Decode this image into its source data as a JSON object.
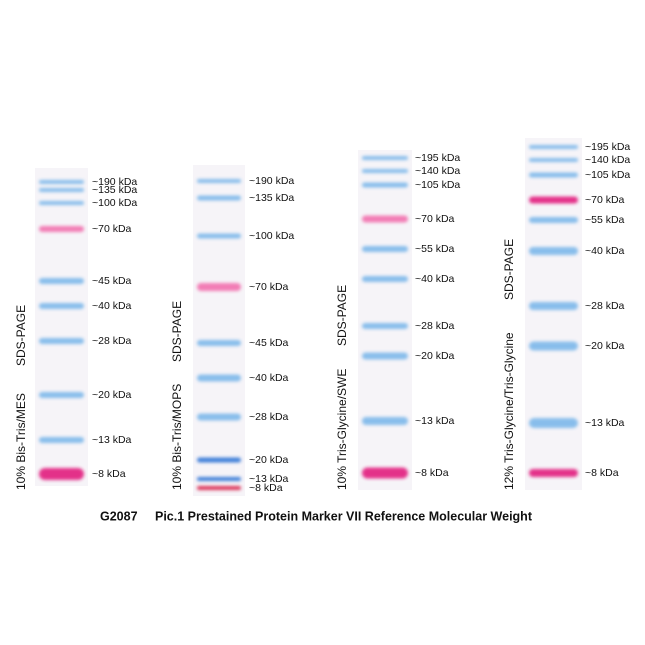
{
  "lanes": [
    {
      "gel_label": "10% Bis-Tris/MES",
      "method": "SDS-PAGE",
      "bands": [
        "~190 kDa",
        "~135 kDa",
        "~100 kDa",
        "~70 kDa",
        "~45 kDa",
        "~40 kDa",
        "~28 kDa",
        "~20 kDa",
        "~13 kDa",
        "~8 kDa"
      ]
    },
    {
      "gel_label": "10% Bis-Tris/MOPS",
      "method": "SDS-PAGE",
      "bands": [
        "~190 kDa",
        "~135 kDa",
        "~100 kDa",
        "~70 kDa",
        "~45 kDa",
        "~40 kDa",
        "~28 kDa",
        "~20 kDa",
        "~13 kDa",
        "~8 kDa"
      ]
    },
    {
      "gel_label": "10% Tris-Glycine/SWE",
      "method": "SDS-PAGE",
      "bands": [
        "~195 kDa",
        "~140 kDa",
        "~105 kDa",
        "~70 kDa",
        "~55 kDa",
        "~40 kDa",
        "~28 kDa",
        "~20 kDa",
        "~13 kDa",
        "~8 kDa"
      ]
    },
    {
      "gel_label": "12% Tris-Glycine/Tris-Glycine",
      "method": "SDS-PAGE",
      "bands": [
        "~195 kDa",
        "~140 kDa",
        "~105 kDa",
        "~70 kDa",
        "~55 kDa",
        "~40 kDa",
        "~28 kDa",
        "~20 kDa",
        "~13 kDa",
        "~8 kDa"
      ]
    }
  ],
  "caption": {
    "code": "G2087",
    "text": "Pic.1 Prestained Protein Marker VII Reference Molecular Weight"
  }
}
